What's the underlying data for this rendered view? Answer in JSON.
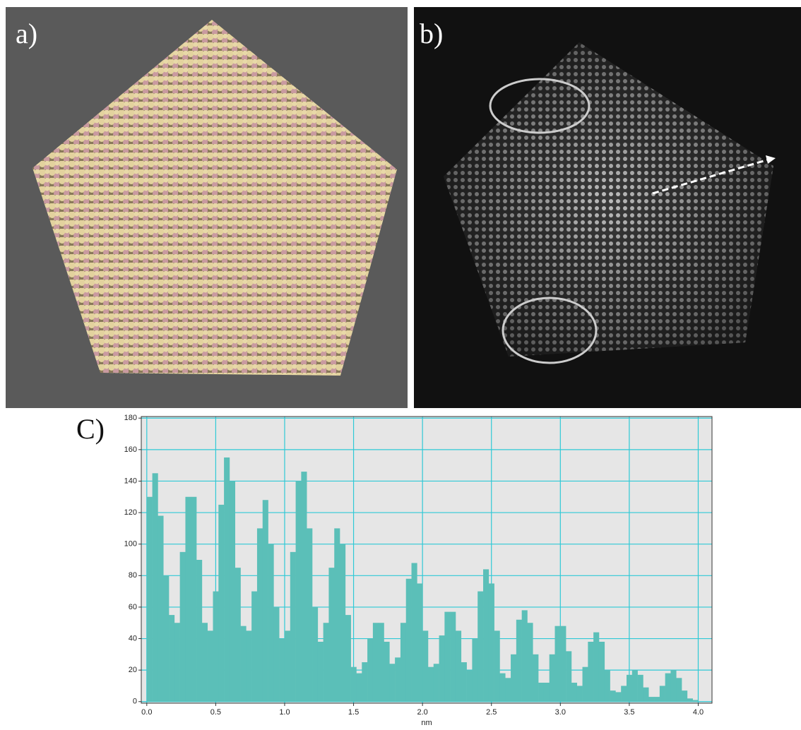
{
  "panels": {
    "a": "a)",
    "b": "b)"
  },
  "chart_data": {
    "type": "histogram",
    "panel_label": "C)",
    "xlabel": "nm",
    "bins": [
      0,
      0.04,
      0.08,
      0.12,
      0.16,
      0.2,
      0.24,
      0.28,
      0.32,
      0.36,
      0.4,
      0.44,
      0.48,
      0.52,
      0.56,
      0.6,
      0.64,
      0.68,
      0.72,
      0.76,
      0.8,
      0.84,
      0.88,
      0.92,
      0.96,
      1,
      1.04,
      1.08,
      1.12,
      1.16,
      1.2,
      1.24,
      1.28,
      1.32,
      1.36,
      1.4,
      1.44,
      1.48,
      1.52,
      1.56,
      1.6,
      1.64,
      1.68,
      1.72,
      1.76,
      1.8,
      1.84,
      1.88,
      1.92,
      1.96,
      2,
      2.04,
      2.08,
      2.12,
      2.16,
      2.2,
      2.24,
      2.28,
      2.32,
      2.36,
      2.4,
      2.44,
      2.48,
      2.52,
      2.56,
      2.6,
      2.64,
      2.68,
      2.72,
      2.76,
      2.8,
      2.84,
      2.88,
      2.92,
      2.96,
      3,
      3.04,
      3.08,
      3.12,
      3.16,
      3.2,
      3.24,
      3.28,
      3.32,
      3.36,
      3.4,
      3.44,
      3.48,
      3.52,
      3.56,
      3.6,
      3.64,
      3.68,
      3.72,
      3.76,
      3.8,
      3.84,
      3.88,
      3.92,
      3.96,
      4
    ],
    "counts": [
      130,
      145,
      118,
      80,
      55,
      50,
      95,
      130,
      130,
      90,
      50,
      45,
      70,
      125,
      155,
      140,
      85,
      48,
      45,
      70,
      110,
      128,
      100,
      60,
      40,
      45,
      95,
      140,
      146,
      110,
      60,
      38,
      50,
      85,
      110,
      100,
      55,
      22,
      18,
      25,
      40,
      50,
      50,
      38,
      24,
      28,
      50,
      78,
      88,
      75,
      45,
      22,
      24,
      42,
      57,
      57,
      45,
      25,
      20,
      40,
      70,
      84,
      75,
      45,
      18,
      15,
      30,
      52,
      58,
      50,
      30,
      12,
      12,
      30,
      48,
      48,
      32,
      12,
      10,
      22,
      38,
      44,
      38,
      20,
      7,
      6,
      10,
      17,
      20,
      17,
      9,
      3,
      3,
      10,
      18,
      20,
      15,
      7,
      2,
      1
    ],
    "color": "#5bbfb8",
    "grid": true,
    "grid_color": "#2fc9d6",
    "xlim": [
      -0.04,
      4.1
    ],
    "ylim": [
      -1,
      181
    ],
    "xticks": [
      {
        "value": 0,
        "label": "0.0"
      },
      0.5,
      {
        "value": 1,
        "label": "1.0"
      },
      1.5,
      {
        "value": 2,
        "label": "2.0"
      },
      2.5,
      {
        "value": 3,
        "label": "3.0"
      },
      3.5,
      {
        "value": 4,
        "label": "4.0"
      }
    ],
    "yticks": [
      0,
      20,
      40,
      60,
      80,
      100,
      120,
      140,
      160,
      180
    ]
  }
}
